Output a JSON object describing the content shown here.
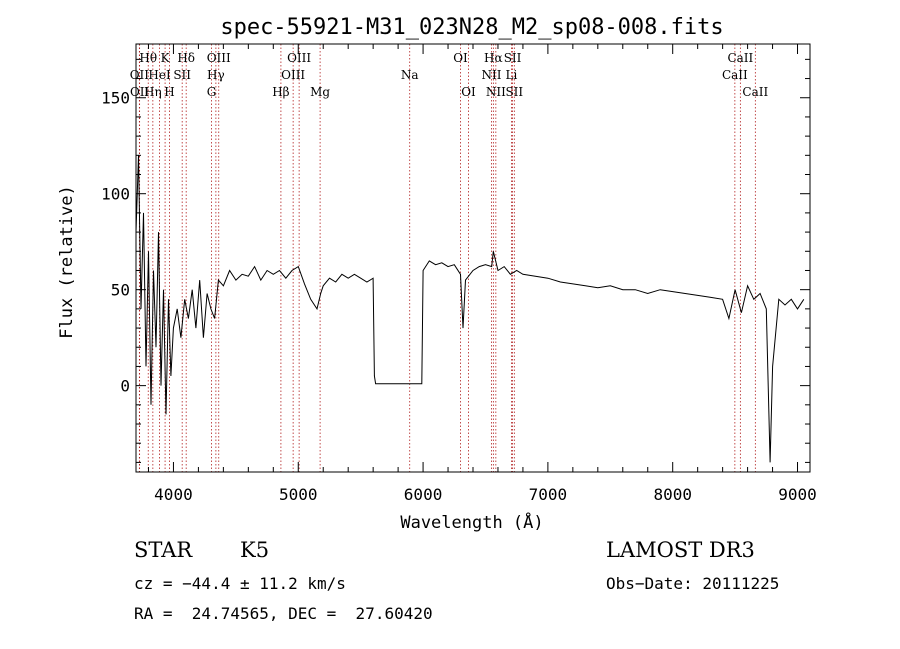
{
  "chart_data": {
    "type": "line",
    "title": "spec-55921-M31_023N28_M2_sp08-008.fits",
    "xlabel": "Wavelength (Å)",
    "ylabel": "Flux (relative)",
    "xlim": [
      3700,
      9100
    ],
    "ylim": [
      -45,
      178
    ],
    "x_ticks": [
      4000,
      5000,
      6000,
      7000,
      8000,
      9000
    ],
    "y_ticks": [
      0,
      50,
      100,
      150
    ],
    "grid": false,
    "legend": "none",
    "line_color": "#000000",
    "marker_color": "#b22222",
    "series": [
      {
        "x": [
          3700,
          3720,
          3740,
          3760,
          3780,
          3800,
          3820,
          3840,
          3860,
          3880,
          3900,
          3920,
          3940,
          3960,
          3980,
          4000,
          4030,
          4060,
          4090,
          4120,
          4150,
          4180,
          4210,
          4240,
          4270,
          4300,
          4330,
          4360,
          4400,
          4450,
          4500,
          4550,
          4600,
          4650,
          4700,
          4750,
          4800,
          4850,
          4900,
          4950,
          5000,
          5050,
          5100,
          5150,
          5180,
          5200,
          5250,
          5300,
          5350,
          5400,
          5450,
          5500,
          5550,
          5600,
          5610,
          5620,
          5990,
          6000,
          6050,
          6100,
          6150,
          6200,
          6250,
          6300,
          6320,
          6340,
          6400,
          6450,
          6500,
          6550,
          6563,
          6600,
          6650,
          6700,
          6750,
          6800,
          6900,
          7000,
          7100,
          7200,
          7300,
          7400,
          7500,
          7600,
          7700,
          7800,
          7900,
          8000,
          8100,
          8200,
          8300,
          8400,
          8450,
          8500,
          8550,
          8600,
          8650,
          8700,
          8750,
          8780,
          8800,
          8850,
          8900,
          8950,
          9000,
          9050
        ],
        "y": [
          80,
          120,
          40,
          90,
          10,
          70,
          -10,
          60,
          20,
          80,
          0,
          50,
          -15,
          45,
          5,
          30,
          40,
          25,
          45,
          35,
          50,
          30,
          55,
          25,
          48,
          40,
          35,
          55,
          52,
          60,
          55,
          58,
          57,
          62,
          55,
          60,
          58,
          60,
          56,
          60,
          62,
          53,
          45,
          40,
          48,
          52,
          56,
          54,
          58,
          56,
          58,
          56,
          54,
          56,
          5,
          1,
          1,
          60,
          65,
          63,
          64,
          62,
          63,
          58,
          30,
          55,
          60,
          62,
          63,
          62,
          70,
          60,
          62,
          58,
          60,
          58,
          57,
          56,
          54,
          53,
          52,
          51,
          52,
          50,
          50,
          48,
          50,
          49,
          48,
          47,
          46,
          45,
          35,
          50,
          38,
          52,
          45,
          48,
          40,
          -40,
          10,
          45,
          42,
          45,
          40,
          45
        ]
      }
    ],
    "line_labels": [
      {
        "label": "Hθ",
        "x": 3798,
        "row": 0
      },
      {
        "label": "K",
        "x": 3933,
        "row": 0
      },
      {
        "label": "Hδ",
        "x": 4102,
        "row": 0
      },
      {
        "label": "OIII",
        "x": 4363,
        "row": 0
      },
      {
        "label": "OIII",
        "x": 5007,
        "row": 0
      },
      {
        "label": "OI",
        "x": 6300,
        "row": 0
      },
      {
        "label": "Hα",
        "x": 6563,
        "row": 0
      },
      {
        "label": "SII",
        "x": 6717,
        "row": 0
      },
      {
        "label": "CaII",
        "x": 8542,
        "row": 0
      },
      {
        "label": "OII",
        "x": 3727,
        "row": 1
      },
      {
        "label": "HeI",
        "x": 3889,
        "row": 1
      },
      {
        "label": "SII",
        "x": 4070,
        "row": 1
      },
      {
        "label": "Hγ",
        "x": 4340,
        "row": 1
      },
      {
        "label": "OIII",
        "x": 4959,
        "row": 1
      },
      {
        "label": "Na",
        "x": 5893,
        "row": 1
      },
      {
        "label": "NII",
        "x": 6548,
        "row": 1
      },
      {
        "label": "Li",
        "x": 6708,
        "row": 1
      },
      {
        "label": "CaII",
        "x": 8498,
        "row": 1
      },
      {
        "label": "OII",
        "x": 3729,
        "row": 2
      },
      {
        "label": "Hη",
        "x": 3835,
        "row": 2
      },
      {
        "label": "H",
        "x": 3968,
        "row": 2
      },
      {
        "label": "G",
        "x": 4305,
        "row": 2
      },
      {
        "label": "Hβ",
        "x": 4861,
        "row": 2
      },
      {
        "label": "Mg",
        "x": 5175,
        "row": 2
      },
      {
        "label": "OI",
        "x": 6364,
        "row": 2
      },
      {
        "label": "NII",
        "x": 6583,
        "row": 2
      },
      {
        "label": "SII",
        "x": 6731,
        "row": 2
      },
      {
        "label": "CaII",
        "x": 8662,
        "row": 2
      }
    ]
  },
  "info": {
    "object_class": "STAR",
    "subclass": "K5",
    "survey": "LAMOST DR3",
    "cz": "cz = −44.4 ± 11.2 km/s",
    "obs_date": "Obs−Date: 20111225",
    "coords": "RA =  24.74565, DEC =  27.60420"
  }
}
